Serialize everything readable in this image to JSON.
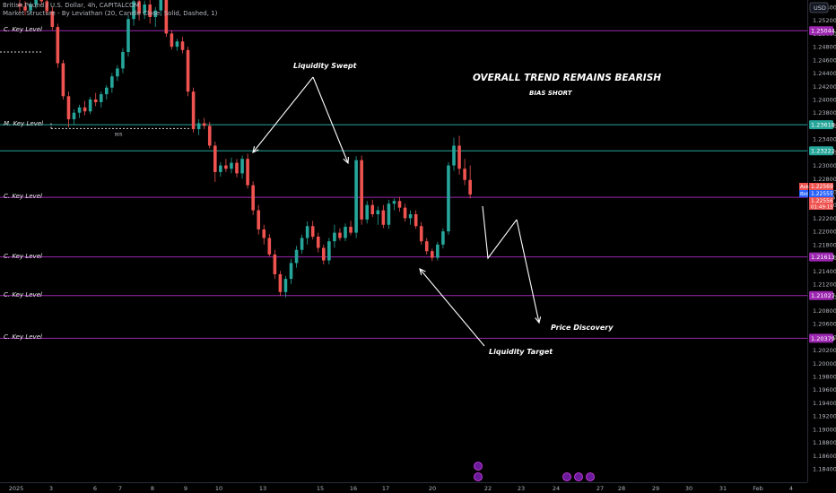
{
  "header": {
    "symbol_line": "British Pound / U.S. Dollar, 4h, CAPITALCOM",
    "indicator_line": "Market Structure - By Leviathan (20, Candle Close, Solid, Dashed, 1)",
    "currency": "USD"
  },
  "annotations": {
    "trend": "OVERALL TREND REMAINS BEARISH",
    "bias": "BIAS SHORT",
    "liquidity_swept": "Liquidity Swept",
    "price_discovery": "Price Discovery",
    "liquidity_target": "Liquidity Target"
  },
  "levels": [
    {
      "label": "C. Key Level",
      "price": 1.25044,
      "tag": "1.25044",
      "color": "#9c27b0"
    },
    {
      "label": "M. Key Level",
      "price": 1.23618,
      "tag": "1.23618",
      "color": "#26a69a"
    },
    {
      "label": "",
      "price": 1.23222,
      "tag": "1.23222",
      "color": "#26a69a"
    },
    {
      "label": "C. Key Level",
      "price": 1.22516,
      "tag": "1.22516",
      "color": "#9c27b0"
    },
    {
      "label": "C. Key Level",
      "price": 1.21613,
      "tag": "1.21613",
      "color": "#9c27b0"
    },
    {
      "label": "C. Key Level",
      "price": 1.21027,
      "tag": "1.21027",
      "color": "#9c27b0"
    },
    {
      "label": "C. Key Level",
      "price": 1.20379,
      "tag": "1.20379",
      "color": "#9c27b0"
    }
  ],
  "price_tags": {
    "ask": {
      "label": "Ask",
      "value": "1.22569"
    },
    "bid": {
      "label": "Bid",
      "value": "1.22555"
    },
    "last": {
      "value": "1.22556",
      "countdown": "01:49:15"
    }
  },
  "marker_text": "BOS",
  "chart_data": {
    "type": "candlestick",
    "title": "British Pound / U.S. Dollar, 4h, CAPITALCOM",
    "ylim": [
      1.1824,
      1.2558
    ],
    "y_ticks": [
      "1.25400",
      "1.25200",
      "1.25000",
      "1.24800",
      "1.24600",
      "1.24400",
      "1.24200",
      "1.24000",
      "1.23800",
      "1.23600",
      "1.23400",
      "1.23200",
      "1.23000",
      "1.22800",
      "1.22600",
      "1.22400",
      "1.22200",
      "1.22000",
      "1.21800",
      "1.21600",
      "1.21400",
      "1.21200",
      "1.21000",
      "1.20800",
      "1.20600",
      "1.20400",
      "1.20200",
      "1.20000",
      "1.19800",
      "1.19600",
      "1.19400",
      "1.19200",
      "1.19000",
      "1.18800",
      "1.18600",
      "1.18400"
    ],
    "x_ticks": [
      "2025",
      "3",
      "6",
      "7",
      "8",
      "9",
      "10",
      "13",
      "15",
      "16",
      "17",
      "20",
      "22",
      "23",
      "24",
      "27",
      "28",
      "29",
      "30",
      "31",
      "Feb",
      "4"
    ],
    "ohlc": [
      [
        1.2545,
        1.2555,
        1.2533,
        1.2541
      ],
      [
        1.2541,
        1.2549,
        1.2528,
        1.2535
      ],
      [
        1.2535,
        1.2548,
        1.253,
        1.2544
      ],
      [
        1.2544,
        1.256,
        1.2538,
        1.2552
      ],
      [
        1.2552,
        1.2558,
        1.2543,
        1.2549
      ],
      [
        1.2549,
        1.2556,
        1.253,
        1.2534
      ],
      [
        1.2534,
        1.254,
        1.2505,
        1.251
      ],
      [
        1.251,
        1.2515,
        1.2448,
        1.2455
      ],
      [
        1.2455,
        1.246,
        1.24,
        1.2405
      ],
      [
        1.2405,
        1.2412,
        1.2358,
        1.237
      ],
      [
        1.237,
        1.2385,
        1.2362,
        1.238
      ],
      [
        1.238,
        1.2392,
        1.2372,
        1.2388
      ],
      [
        1.2388,
        1.2398,
        1.2376,
        1.2382
      ],
      [
        1.2382,
        1.2404,
        1.2378,
        1.24
      ],
      [
        1.24,
        1.241,
        1.239,
        1.2396
      ],
      [
        1.2396,
        1.2412,
        1.2388,
        1.2408
      ],
      [
        1.2408,
        1.2422,
        1.24,
        1.2418
      ],
      [
        1.2418,
        1.244,
        1.241,
        1.2435
      ],
      [
        1.2435,
        1.2452,
        1.2428,
        1.2447
      ],
      [
        1.2447,
        1.2478,
        1.244,
        1.2472
      ],
      [
        1.2472,
        1.2528,
        1.2465,
        1.2522
      ],
      [
        1.2522,
        1.2558,
        1.2512,
        1.2549
      ],
      [
        1.2549,
        1.2555,
        1.252,
        1.253
      ],
      [
        1.253,
        1.255,
        1.2522,
        1.2544
      ],
      [
        1.2544,
        1.256,
        1.2515,
        1.2525
      ],
      [
        1.2525,
        1.254,
        1.251,
        1.2535
      ],
      [
        1.2535,
        1.2562,
        1.2528,
        1.2556
      ],
      [
        1.2556,
        1.256,
        1.2495,
        1.25
      ],
      [
        1.25,
        1.2505,
        1.2476,
        1.248
      ],
      [
        1.248,
        1.2492,
        1.2474,
        1.2488
      ],
      [
        1.2488,
        1.2495,
        1.247,
        1.2475
      ],
      [
        1.2475,
        1.248,
        1.2405,
        1.2412
      ],
      [
        1.2412,
        1.2418,
        1.235,
        1.2355
      ],
      [
        1.2355,
        1.237,
        1.2346,
        1.2364
      ],
      [
        1.2364,
        1.2372,
        1.2355,
        1.236
      ],
      [
        1.236,
        1.2366,
        1.2326,
        1.233
      ],
      [
        1.233,
        1.2336,
        1.2275,
        1.229
      ],
      [
        1.229,
        1.2305,
        1.2283,
        1.23
      ],
      [
        1.23,
        1.231,
        1.229,
        1.2295
      ],
      [
        1.2295,
        1.2312,
        1.2288,
        1.2304
      ],
      [
        1.2304,
        1.231,
        1.2282,
        1.2288
      ],
      [
        1.2288,
        1.2315,
        1.228,
        1.231
      ],
      [
        1.231,
        1.2318,
        1.2265,
        1.227
      ],
      [
        1.227,
        1.2276,
        1.2225,
        1.2232
      ],
      [
        1.2232,
        1.224,
        1.2195,
        1.2203
      ],
      [
        1.2203,
        1.221,
        1.218,
        1.219
      ],
      [
        1.219,
        1.2196,
        1.2162,
        1.2165
      ],
      [
        1.2165,
        1.2172,
        1.2128,
        1.2135
      ],
      [
        1.2135,
        1.214,
        1.2102,
        1.2108
      ],
      [
        1.2108,
        1.2132,
        1.21,
        1.2128
      ],
      [
        1.2128,
        1.2158,
        1.212,
        1.2152
      ],
      [
        1.2152,
        1.2178,
        1.2145,
        1.2172
      ],
      [
        1.2172,
        1.2195,
        1.2166,
        1.219
      ],
      [
        1.219,
        1.2215,
        1.218,
        1.2208
      ],
      [
        1.2208,
        1.2216,
        1.2188,
        1.2192
      ],
      [
        1.2192,
        1.2198,
        1.2168,
        1.2175
      ],
      [
        1.2175,
        1.218,
        1.215,
        1.2156
      ],
      [
        1.2156,
        1.219,
        1.215,
        1.2185
      ],
      [
        1.2185,
        1.221,
        1.2175,
        1.2198
      ],
      [
        1.2198,
        1.2205,
        1.2186,
        1.219
      ],
      [
        1.219,
        1.2212,
        1.2185,
        1.2207
      ],
      [
        1.2207,
        1.2216,
        1.2194,
        1.2198
      ],
      [
        1.2198,
        1.2314,
        1.219,
        1.2308
      ],
      [
        1.2308,
        1.2315,
        1.221,
        1.2218
      ],
      [
        1.2218,
        1.2246,
        1.2212,
        1.224
      ],
      [
        1.224,
        1.2248,
        1.2222,
        1.2226
      ],
      [
        1.2226,
        1.2238,
        1.221,
        1.2232
      ],
      [
        1.2232,
        1.224,
        1.2205,
        1.221
      ],
      [
        1.221,
        1.2248,
        1.2204,
        1.2242
      ],
      [
        1.2242,
        1.225,
        1.2232,
        1.2246
      ],
      [
        1.2246,
        1.2252,
        1.223,
        1.2236
      ],
      [
        1.2236,
        1.2242,
        1.2215,
        1.222
      ],
      [
        1.222,
        1.2232,
        1.221,
        1.2226
      ],
      [
        1.2226,
        1.2232,
        1.2204,
        1.2208
      ],
      [
        1.2208,
        1.2214,
        1.218,
        1.2185
      ],
      [
        1.2185,
        1.219,
        1.2165,
        1.217
      ],
      [
        1.217,
        1.2174,
        1.2155,
        1.216
      ],
      [
        1.216,
        1.2184,
        1.2156,
        1.218
      ],
      [
        1.218,
        1.2205,
        1.2174,
        1.22
      ],
      [
        1.22,
        1.2305,
        1.2195,
        1.23
      ],
      [
        1.23,
        1.2342,
        1.2292,
        1.233
      ],
      [
        1.233,
        1.2345,
        1.2286,
        1.2295
      ],
      [
        1.2295,
        1.231,
        1.227,
        1.2278
      ],
      [
        1.2278,
        1.23,
        1.225,
        1.2256
      ]
    ]
  }
}
